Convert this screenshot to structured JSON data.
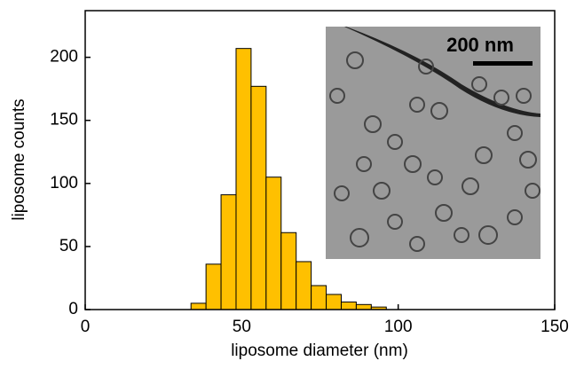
{
  "chart_data": {
    "type": "histogram",
    "xlabel": "liposome diameter (nm)",
    "ylabel": "liposome counts",
    "bins": [
      33.8,
      38.6,
      43.4,
      48.2,
      53.0,
      57.8,
      62.6,
      67.4,
      72.2,
      77.0,
      81.8,
      86.6,
      91.4,
      96.2
    ],
    "values": [
      5,
      36,
      91,
      207,
      177,
      105,
      61,
      38,
      19,
      12,
      6,
      4,
      2
    ],
    "color": "#ffc000",
    "xlim": [
      0,
      150
    ],
    "xticks": [
      0,
      50,
      100,
      150
    ],
    "ylim": [
      0,
      237
    ],
    "yticks": [
      0,
      50,
      100,
      150,
      200
    ],
    "inset_scale_label": "200 nm"
  }
}
